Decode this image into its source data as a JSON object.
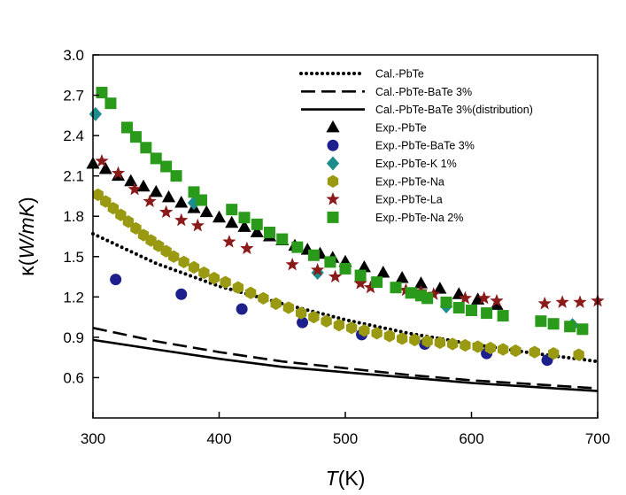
{
  "chart_data": {
    "type": "scatter",
    "title": "",
    "xlabel_italic": "T",
    "xlabel_rest": "(K)",
    "ylabel_prefix": "κ(",
    "ylabel_italic": "W/mK",
    "ylabel_suffix": ")",
    "xlim": [
      300,
      700
    ],
    "ylim": [
      0.3,
      3.0
    ],
    "xticks": [
      300,
      400,
      500,
      600,
      700
    ],
    "yticks": [
      0.6,
      0.9,
      1.2,
      1.5,
      1.8,
      2.1,
      2.4,
      2.7,
      3.0
    ],
    "legend_position": "top-right",
    "series": [
      {
        "name": "Cal.-PbTe",
        "kind": "line",
        "style": "dotted",
        "color": "#000000",
        "x": [
          300,
          350,
          400,
          450,
          500,
          550,
          600,
          650,
          700
        ],
        "y": [
          1.67,
          1.45,
          1.28,
          1.15,
          1.03,
          0.93,
          0.85,
          0.78,
          0.72
        ]
      },
      {
        "name": "Cal.-PbTe-BaTe 3%",
        "kind": "line",
        "style": "dashed",
        "color": "#000000",
        "x": [
          300,
          350,
          400,
          450,
          500,
          550,
          600,
          650,
          700
        ],
        "y": [
          0.97,
          0.87,
          0.79,
          0.72,
          0.67,
          0.62,
          0.58,
          0.55,
          0.52
        ]
      },
      {
        "name": "Cal.-PbTe-BaTe 3%(distribution)",
        "kind": "line",
        "style": "solid",
        "color": "#000000",
        "x": [
          300,
          350,
          400,
          450,
          500,
          550,
          600,
          650,
          700
        ],
        "y": [
          0.88,
          0.81,
          0.74,
          0.68,
          0.64,
          0.6,
          0.56,
          0.53,
          0.5
        ]
      },
      {
        "name": "Exp.-PbTe",
        "kind": "marker",
        "marker": "triangle",
        "color": "#000000",
        "x": [
          300,
          310,
          320,
          330,
          340,
          350,
          360,
          370,
          380,
          390,
          400,
          410,
          420,
          430,
          440,
          450,
          460,
          470,
          480,
          490,
          500,
          515,
          530,
          545,
          560,
          575,
          590,
          605,
          620
        ],
        "y": [
          2.19,
          2.15,
          2.1,
          2.06,
          2.02,
          1.98,
          1.94,
          1.9,
          1.86,
          1.83,
          1.79,
          1.75,
          1.72,
          1.68,
          1.65,
          1.62,
          1.58,
          1.55,
          1.52,
          1.49,
          1.46,
          1.42,
          1.38,
          1.34,
          1.3,
          1.26,
          1.22,
          1.18,
          1.14
        ]
      },
      {
        "name": "Exp.-PbTe-BaTe 3%",
        "kind": "marker",
        "marker": "circle",
        "color": "#1c1f8c",
        "x": [
          318,
          370,
          418,
          466,
          513,
          563,
          612,
          660
        ],
        "y": [
          1.33,
          1.22,
          1.11,
          1.01,
          0.92,
          0.85,
          0.78,
          0.73
        ]
      },
      {
        "name": "Exp.-PbTe-K 1%",
        "kind": "marker",
        "marker": "diamond",
        "color": "#1c8c8c",
        "x": [
          302,
          380,
          478,
          580,
          680
        ],
        "y": [
          2.56,
          1.9,
          1.38,
          1.13,
          0.99
        ]
      },
      {
        "name": "Exp.-PbTe-Na",
        "kind": "marker",
        "marker": "hexagon",
        "color": "#9a9a12",
        "x": [
          304,
          310,
          316,
          322,
          328,
          334,
          340,
          346,
          352,
          358,
          364,
          372,
          380,
          388,
          396,
          405,
          415,
          425,
          435,
          445,
          455,
          465,
          475,
          485,
          495,
          505,
          515,
          525,
          535,
          545,
          555,
          565,
          575,
          585,
          595,
          605,
          615,
          625,
          635,
          650,
          665,
          685
        ],
        "y": [
          1.96,
          1.91,
          1.86,
          1.81,
          1.76,
          1.71,
          1.66,
          1.62,
          1.58,
          1.54,
          1.5,
          1.46,
          1.42,
          1.38,
          1.34,
          1.31,
          1.27,
          1.23,
          1.19,
          1.15,
          1.12,
          1.08,
          1.05,
          1.02,
          0.99,
          0.97,
          0.95,
          0.93,
          0.91,
          0.89,
          0.88,
          0.87,
          0.86,
          0.85,
          0.84,
          0.83,
          0.82,
          0.81,
          0.8,
          0.79,
          0.78,
          0.77
        ]
      },
      {
        "name": "Exp.-PbTe-La",
        "kind": "marker",
        "marker": "star",
        "color": "#8b1a1a",
        "x": [
          307,
          320,
          333,
          345,
          358,
          370,
          383,
          408,
          422,
          458,
          478,
          492,
          512,
          520,
          548,
          560,
          570,
          595,
          610,
          620,
          658,
          672,
          686,
          700
        ],
        "y": [
          2.21,
          2.12,
          2.0,
          1.91,
          1.83,
          1.77,
          1.73,
          1.61,
          1.56,
          1.44,
          1.4,
          1.35,
          1.3,
          1.27,
          1.25,
          1.24,
          1.22,
          1.19,
          1.19,
          1.17,
          1.15,
          1.16,
          1.16,
          1.17
        ]
      },
      {
        "name": "Exp.-PbTe-Na 2%",
        "kind": "marker",
        "marker": "square",
        "color": "#2a9a1a",
        "x": [
          307,
          314,
          327,
          334,
          342,
          350,
          358,
          366,
          380,
          386,
          410,
          420,
          430,
          440,
          450,
          462,
          475,
          488,
          500,
          512,
          525,
          540,
          552,
          560,
          565,
          580,
          590,
          600,
          612,
          625,
          655,
          665,
          678,
          688
        ],
        "y": [
          2.72,
          2.64,
          2.46,
          2.39,
          2.31,
          2.23,
          2.17,
          2.1,
          1.98,
          1.92,
          1.85,
          1.79,
          1.74,
          1.68,
          1.63,
          1.57,
          1.51,
          1.46,
          1.41,
          1.36,
          1.31,
          1.27,
          1.23,
          1.21,
          1.19,
          1.16,
          1.12,
          1.1,
          1.08,
          1.06,
          1.02,
          1.0,
          0.98,
          0.96
        ]
      }
    ]
  }
}
